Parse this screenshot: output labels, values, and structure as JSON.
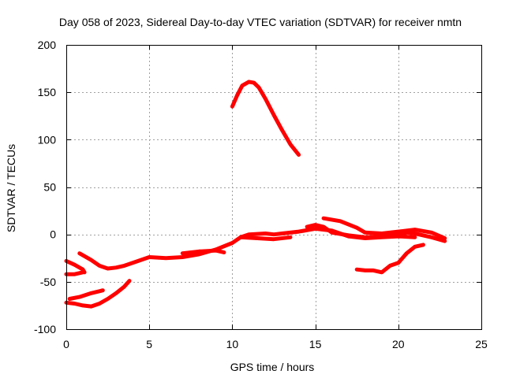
{
  "chart_data": {
    "type": "scatter",
    "title": "Day 058 of 2023, Sidereal Day-to-day VTEC variation (SDTVAR) for receiver nmtn",
    "xlabel": "GPS time / hours",
    "ylabel": "SDTVAR / TECUs",
    "xlim": [
      0,
      25
    ],
    "ylim": [
      -100,
      200
    ],
    "xticks": [
      "0",
      "5",
      "10",
      "15",
      "20",
      "25"
    ],
    "yticks": [
      "-100",
      "-50",
      "0",
      "50",
      "100",
      "150",
      "200"
    ],
    "grid": true,
    "color": "#ff0000",
    "series": [
      {
        "name": "segment-1",
        "x": [
          0.0,
          0.5,
          1.0,
          1.1
        ],
        "y": [
          -28,
          -32,
          -37,
          -40
        ]
      },
      {
        "name": "segment-2",
        "x": [
          0.0,
          0.5,
          1.0
        ],
        "y": [
          -42,
          -42,
          -40
        ]
      },
      {
        "name": "segment-3",
        "x": [
          0.8,
          1.5,
          2.0,
          2.5,
          3.0,
          3.5,
          4.0,
          5.0,
          6.0,
          7.0,
          8.0,
          9.0,
          10.0,
          10.5,
          11.0,
          12.0,
          12.5,
          13.0,
          14.0,
          15.0,
          15.5,
          16.0
        ],
        "y": [
          -20,
          -27,
          -33,
          -36,
          -35,
          -33,
          -30,
          -24,
          -25,
          -24,
          -21,
          -16,
          -9,
          -3,
          0,
          1,
          0,
          1,
          3,
          6,
          5,
          4
        ]
      },
      {
        "name": "segment-4",
        "x": [
          7.0,
          8.0,
          9.0,
          9.5
        ],
        "y": [
          -20,
          -18,
          -17,
          -19
        ]
      },
      {
        "name": "segment-5",
        "x": [
          10.5,
          11.5,
          12.5,
          13.5
        ],
        "y": [
          -3,
          -4,
          -5,
          -3
        ]
      },
      {
        "name": "segment-6",
        "x": [
          14.5,
          15.0,
          15.5,
          16.0,
          17.0,
          18.0,
          19.0,
          20.0,
          20.5,
          21.0,
          22.0,
          22.8
        ],
        "y": [
          8,
          10,
          8,
          2,
          -1,
          -3,
          -2,
          -1,
          2,
          1,
          -3,
          -7
        ]
      },
      {
        "name": "segment-7",
        "x": [
          15.5,
          16.5,
          17.5,
          18.0,
          19.0,
          20.0,
          21.0,
          22.0,
          22.8
        ],
        "y": [
          17,
          14,
          7,
          2,
          1,
          3,
          5,
          2,
          -4
        ]
      },
      {
        "name": "segment-8",
        "x": [
          16.0,
          17.0,
          18.0,
          19.0,
          20.0,
          21.0
        ],
        "y": [
          4,
          -2,
          -4,
          -3,
          -2,
          -3
        ]
      },
      {
        "name": "segment-9",
        "x": [
          17.5,
          18.0,
          18.5,
          19.0,
          19.5,
          20.0,
          20.5,
          21.0,
          21.5
        ],
        "y": [
          -37,
          -38,
          -38,
          -40,
          -33,
          -30,
          -20,
          -13,
          -11
        ]
      },
      {
        "name": "segment-10",
        "x": [
          10.0,
          10.3,
          10.6,
          11.0,
          11.3,
          11.6,
          12.0,
          12.5,
          13.0,
          13.5,
          14.0
        ],
        "y": [
          135,
          147,
          157,
          161,
          160,
          155,
          143,
          126,
          110,
          95,
          84
        ]
      },
      {
        "name": "segment-11",
        "x": [
          0.0,
          0.5,
          1.0,
          1.5,
          2.0,
          2.5,
          3.0,
          3.5,
          3.8
        ],
        "y": [
          -72,
          -73,
          -75,
          -76,
          -73,
          -68,
          -62,
          -55,
          -49
        ]
      },
      {
        "name": "segment-12",
        "x": [
          0.2,
          0.8,
          1.5,
          2.2
        ],
        "y": [
          -68,
          -66,
          -62,
          -59
        ]
      }
    ]
  }
}
